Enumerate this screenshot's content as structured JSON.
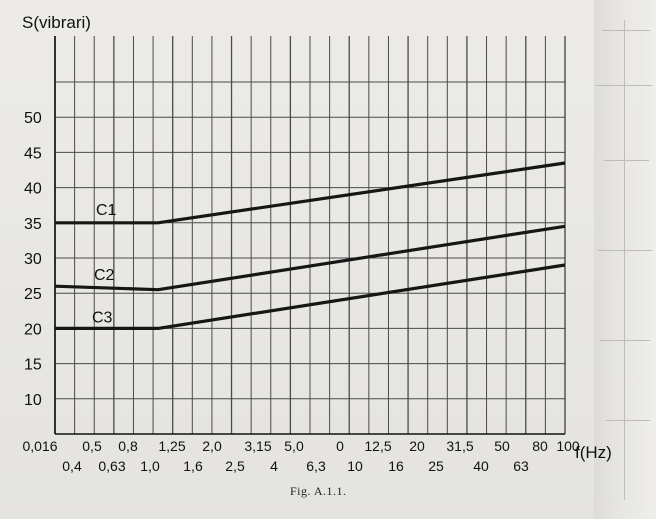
{
  "caption": "Fig. A.1.1.",
  "chart_data": {
    "type": "line",
    "title": "",
    "xlabel": "f(Hz)",
    "ylabel": "S(vibrari)",
    "x_scale": "log",
    "x_ticks_upper": [
      "0,016",
      "0,5",
      "0,8",
      "1,25",
      "2,0",
      "3,15",
      "5,0",
      "0",
      "12,5",
      "20",
      "31,5",
      "50",
      "80",
      "100"
    ],
    "x_ticks_lower": [
      "0,4",
      "0,63",
      "1,0",
      "1,6",
      "2,5",
      "4",
      "6,3",
      "10",
      "16",
      "25",
      "40",
      "63"
    ],
    "y_ticks": [
      "10",
      "15",
      "20",
      "25",
      "30",
      "35",
      "40",
      "45",
      "50"
    ],
    "ylim": [
      5,
      55
    ],
    "grid": true,
    "series": [
      {
        "name": "C1",
        "points": [
          [
            0.016,
            35
          ],
          [
            1.0,
            35
          ],
          [
            100,
            43.5
          ]
        ]
      },
      {
        "name": "C2",
        "points": [
          [
            0.016,
            26
          ],
          [
            1.0,
            25.5
          ],
          [
            100,
            34.5
          ]
        ]
      },
      {
        "name": "C3",
        "points": [
          [
            0.016,
            20
          ],
          [
            1.0,
            20
          ],
          [
            100,
            29
          ]
        ]
      }
    ],
    "colors": {
      "line": "#161616",
      "grid": "#4a4a4a"
    }
  }
}
